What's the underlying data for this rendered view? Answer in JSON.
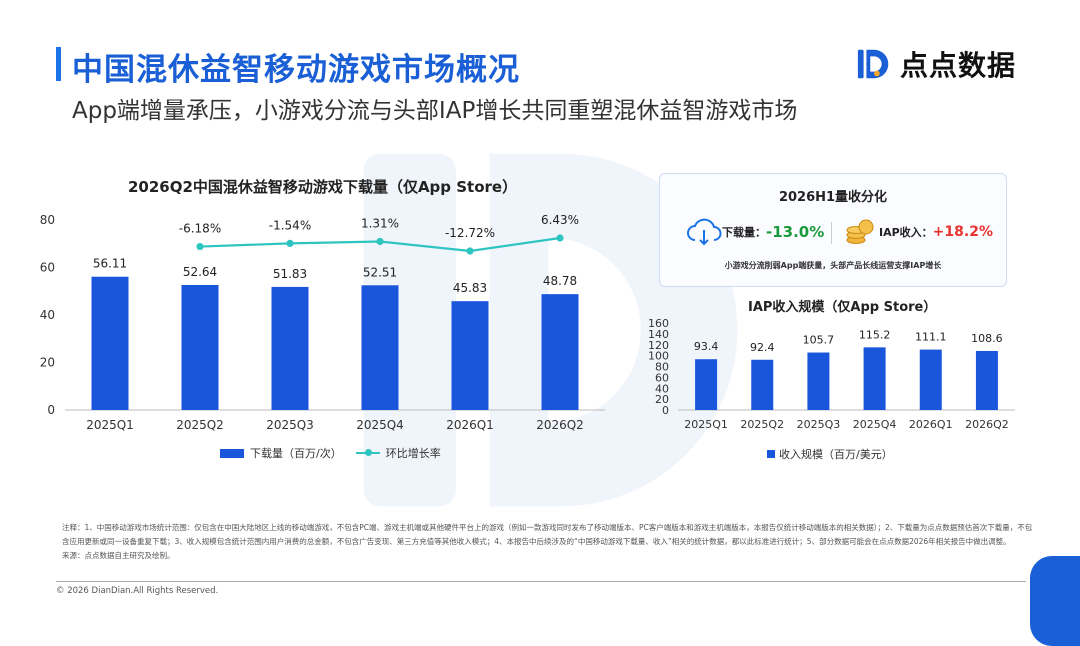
{
  "header": {
    "title": "中国混休益智移动游戏市场概况",
    "subtitle": "App端增量承压，小游戏分流与头部IAP增长共同重塑混休益智游戏市场"
  },
  "brand": {
    "logo_text": "点点数据",
    "logo_color": "#1a5fd6"
  },
  "summary": {
    "title": "2026H1量收分化",
    "downloads_label": "下载量：",
    "downloads_value": "-13.0%",
    "iap_label": "IAP收入：",
    "iap_value": "+18.2%",
    "note": "小游戏分流削弱App端获量，头部产品长线运营支撑IAP增长"
  },
  "chart_data": [
    {
      "type": "bar",
      "title": "2026Q2中国混休益智移动游戏下载量（仅App Store）",
      "categories": [
        "2025Q1",
        "2025Q2",
        "2025Q3",
        "2025Q4",
        "2026Q1",
        "2026Q2"
      ],
      "series": [
        {
          "name": "下载量（百万/次）",
          "type": "bar",
          "values": [
            56.11,
            52.64,
            51.83,
            52.51,
            45.83,
            48.78
          ],
          "color": "#1a56db"
        },
        {
          "name": "环比增长率",
          "type": "line",
          "values_label": [
            "",
            "-6.18%",
            "-1.54%",
            "1.31%",
            "-12.72%",
            "6.43%"
          ],
          "values": [
            null,
            -6.18,
            -1.54,
            1.31,
            -12.72,
            6.43
          ],
          "color": "#2ec4c0"
        }
      ],
      "ylim": [
        0,
        80
      ],
      "yticks": [
        "0",
        "20",
        "40",
        "60",
        "80"
      ],
      "grid": false,
      "legend": "bottom"
    },
    {
      "type": "bar",
      "title": "IAP收入规模（仅App Store）",
      "categories": [
        "2025Q1",
        "2025Q2",
        "2025Q3",
        "2025Q4",
        "2026Q1",
        "2026Q2"
      ],
      "series": [
        {
          "name": "收入规模（百万/美元）",
          "values": [
            93.4,
            92.4,
            105.7,
            115.2,
            111.1,
            108.6
          ],
          "color": "#1a56db"
        }
      ],
      "ylim": [
        0,
        160
      ],
      "yticks": [
        "0",
        "20",
        "40",
        "60",
        "80",
        "100",
        "120",
        "140",
        "160"
      ],
      "grid": false,
      "legend": "bottom"
    }
  ],
  "notes": {
    "line1": "注释：1、中国移动游戏市场统计范围：仅包含在中国大陆地区上线的移动端游戏，不包含PC端、游戏主机端或其他硬件平台上的游戏（例如一款游戏同时发布了移动端版本、PC客户端版本和游戏主机端版本，本报告仅统计移动端版本的相关数据）；2、下载量为点点数据预估首次下载量，不包含应用更新或同一设备重复下载；3、收入规模包含统计范围内用户消费的总金额，不包含广告变现、第三方充值等其他收入模式；4、本报告中后续涉及的“中国移动游戏下载量、收入”相关的统计数据，都以此标准进行统计；5、部分数据可能会在点点数据2026年相关报告中做出调整。",
    "line2": "来源：点点数据自主研究及绘制。"
  },
  "footer": {
    "copyright": "© 2026 DianDian.All Rights Reserved."
  }
}
